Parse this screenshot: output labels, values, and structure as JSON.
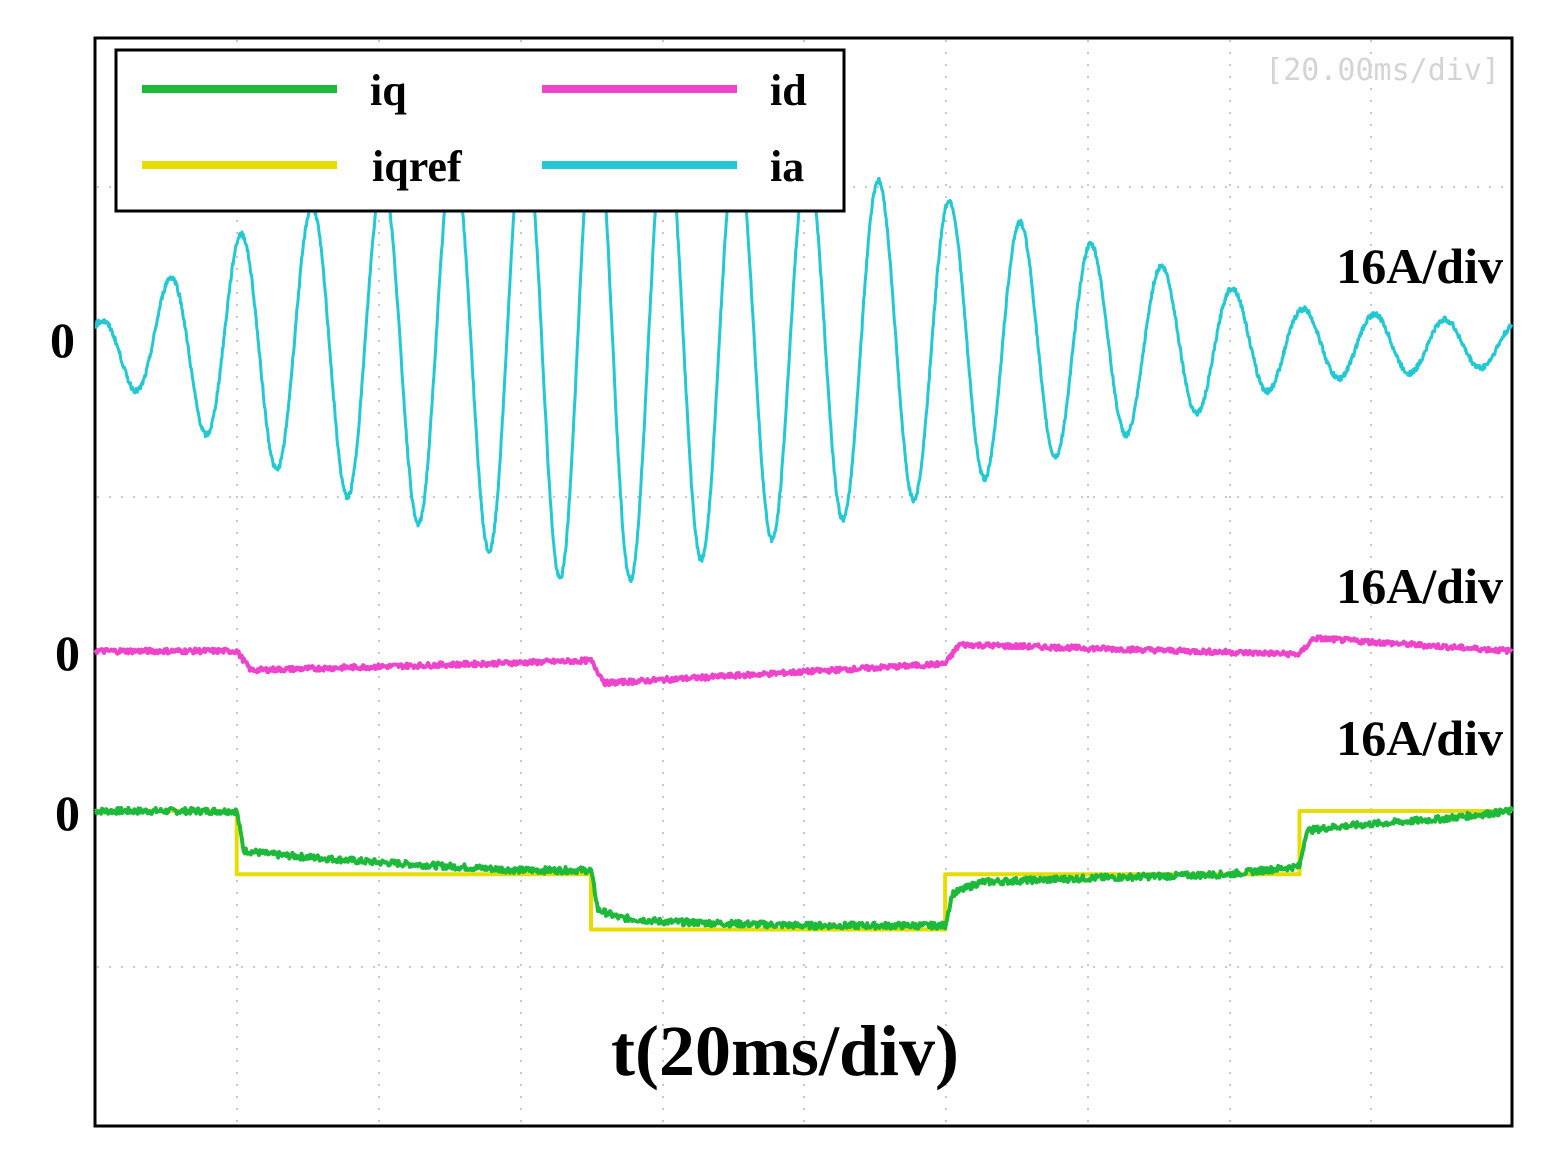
{
  "chart_data": {
    "type": "line",
    "title": "",
    "scope_timebase_label": "[20.00ms/div]",
    "xlabel": "t(20ms/div)",
    "x_unit": "ms",
    "x_range": [
      0,
      200
    ],
    "grid": true,
    "legend_position": "top-left",
    "legend": [
      {
        "name": "iq",
        "color": "#1db93a"
      },
      {
        "name": "id",
        "color": "#ee44cc"
      },
      {
        "name": "iqref",
        "color": "#e6dc00"
      },
      {
        "name": "ia",
        "color": "#22c8d2"
      }
    ],
    "channels": [
      {
        "name": "ia",
        "scale_label": "16A/div",
        "zero_label": "0"
      },
      {
        "name": "id",
        "scale_label": "16A/div",
        "zero_label": "0"
      },
      {
        "name": "iq",
        "scale_label": "16A/div",
        "zero_label": "0"
      }
    ],
    "series": [
      {
        "name": "iqref",
        "unit": "A",
        "x": [
          0,
          20,
          20,
          70,
          70,
          120,
          120,
          170,
          170,
          200
        ],
        "values": [
          0,
          0,
          -16,
          -16,
          -30,
          -30,
          -16,
          -16,
          0,
          0
        ]
      },
      {
        "name": "iq",
        "unit": "A",
        "x": [
          0,
          20,
          21,
          25,
          40,
          60,
          70,
          71,
          74,
          80,
          100,
          120,
          121,
          125,
          140,
          160,
          170,
          171,
          175,
          190,
          200
        ],
        "values": [
          0,
          0,
          -10,
          -11,
          -13,
          -15,
          -15,
          -25,
          -27,
          -28,
          -29,
          -29,
          -21,
          -18,
          -17,
          -16,
          -14,
          -5,
          -4,
          -2,
          0
        ]
      },
      {
        "name": "id",
        "unit": "A",
        "x": [
          0,
          20,
          22,
          70,
          72,
          120,
          122,
          170,
          172,
          200
        ],
        "values": [
          0,
          0,
          -6,
          -3,
          -10,
          -4,
          2,
          -1,
          4,
          0
        ]
      },
      {
        "name": "ia",
        "unit": "A",
        "x": [
          0,
          20,
          70,
          120,
          170,
          200
        ],
        "amplitude": [
          4.5,
          24,
          54,
          32,
          8,
          4.5
        ],
        "frequency_hz": [
          100,
          100,
          100,
          100,
          100,
          100
        ]
      }
    ]
  }
}
